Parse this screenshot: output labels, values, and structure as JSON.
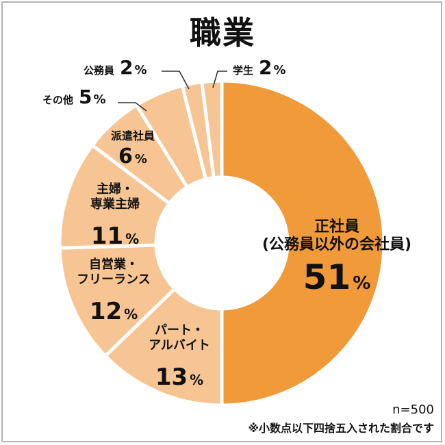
{
  "title": "職業",
  "colors": {
    "main": "#f19a3a",
    "other": "#f6c593",
    "line": "#333333"
  },
  "chart_data": {
    "type": "pie",
    "title": "職業",
    "labels_position": "around",
    "slices": [
      {
        "label": [
          "正社員",
          "(公務員以外の会社員)"
        ],
        "value": 51,
        "display": "51",
        "unit": "%"
      },
      {
        "label": [
          "パート・",
          "アルバイト"
        ],
        "value": 13,
        "display": "13",
        "unit": "%"
      },
      {
        "label": [
          "自営業・",
          "フリーランス"
        ],
        "value": 12,
        "display": "12",
        "unit": "%"
      },
      {
        "label": [
          "主婦・",
          "専業主婦"
        ],
        "value": 11,
        "display": "11",
        "unit": "%"
      },
      {
        "label": [
          "派遣社員"
        ],
        "value": 6,
        "display": "6",
        "unit": "%"
      },
      {
        "label": [
          "その他"
        ],
        "value": 5,
        "display": "5",
        "unit": "%"
      },
      {
        "label": [
          "公務員"
        ],
        "value": 2,
        "display": "2",
        "unit": "%"
      },
      {
        "label": [
          "学生"
        ],
        "value": 2,
        "display": "2",
        "unit": "%"
      }
    ]
  },
  "notes": {
    "sample": "n=500",
    "rounding": "※小数点以下四捨五入された割合です"
  }
}
